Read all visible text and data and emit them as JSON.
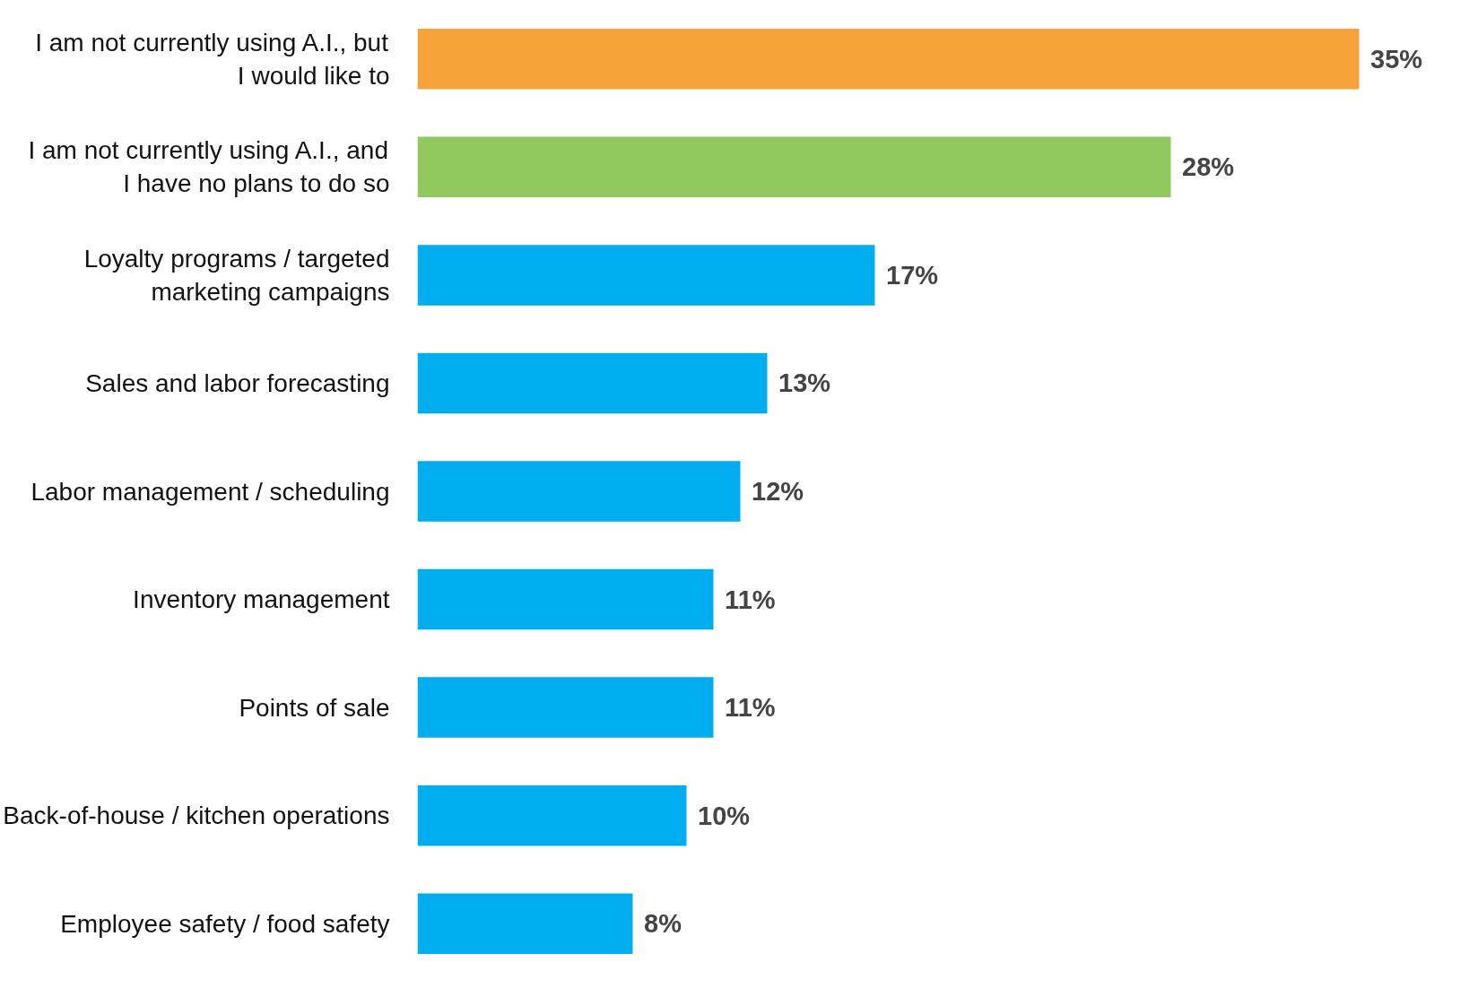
{
  "chart_data": {
    "type": "bar",
    "orientation": "horizontal",
    "categories": [
      "I am not currently using A.I., but I would like to",
      "I am not currently using A.I., and I have no plans to do so",
      "Loyalty programs / targeted marketing campaigns",
      "Sales and labor forecasting",
      "Labor management / scheduling",
      "Inventory management",
      "Points of sale",
      "Back-of-house / kitchen operations",
      "Employee safety / food safety"
    ],
    "values": [
      35,
      28,
      17,
      13,
      12,
      11,
      11,
      10,
      8
    ],
    "colors": [
      "#f7a13a",
      "#92c95f",
      "#00aeef",
      "#00aeef",
      "#00aeef",
      "#00aeef",
      "#00aeef",
      "#00aeef",
      "#00aeef"
    ],
    "value_labels": [
      "35%",
      "28%",
      "17%",
      "13%",
      "12%",
      "11%",
      "11%",
      "10%",
      "8%"
    ],
    "tick_labels": "y"
  }
}
